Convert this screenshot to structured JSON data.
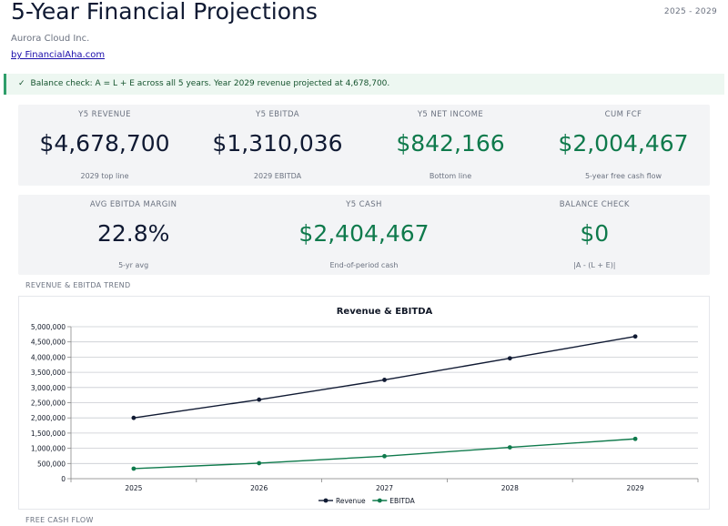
{
  "header": {
    "title": "5-Year Financial Projections",
    "period": "2025 - 2029",
    "company": "Aurora Cloud Inc.",
    "byline": "by FinancialAha.com"
  },
  "banner": {
    "icon": "check-icon",
    "check_glyph": "✓",
    "text": "Balance check: A = L + E across all 5 years. Year 2029 revenue projected at 4,678,700."
  },
  "kpis_row1": [
    {
      "label": "Y5 REVENUE",
      "value": "$4,678,700",
      "sub": "2029 top line",
      "color": "#101a33"
    },
    {
      "label": "Y5 EBITDA",
      "value": "$1,310,036",
      "sub": "2029 EBITDA",
      "color": "#101a33"
    },
    {
      "label": "Y5 NET INCOME",
      "value": "$842,166",
      "sub": "Bottom line",
      "color": "#0f7a4c"
    },
    {
      "label": "CUM FCF",
      "value": "$2,004,467",
      "sub": "5-year free cash flow",
      "color": "#0f7a4c"
    }
  ],
  "kpis_row2": [
    {
      "label": "AVG EBITDA MARGIN",
      "value": "22.8%",
      "sub": "5-yr avg",
      "color": "#101a33"
    },
    {
      "label": "Y5 CASH",
      "value": "$2,404,467",
      "sub": "End-of-period cash",
      "color": "#0f7a4c"
    },
    {
      "label": "BALANCE CHECK",
      "value": "$0",
      "sub": "|A - (L + E)|",
      "color": "#0f7a4c"
    }
  ],
  "sections": {
    "trend_label": "REVENUE & EBITDA TREND",
    "fcf_label": "FREE CASH FLOW"
  },
  "chart_data": {
    "type": "line",
    "title": "Revenue & EBITDA",
    "xlabel": "",
    "ylabel": "",
    "categories": [
      "2025",
      "2026",
      "2027",
      "2028",
      "2029"
    ],
    "ylim": [
      0,
      5000000
    ],
    "yticks": [
      0,
      500000,
      1000000,
      1500000,
      2000000,
      2500000,
      3000000,
      3500000,
      4000000,
      4500000,
      5000000
    ],
    "ytick_labels": [
      "0",
      "500,000",
      "1,000,000",
      "1,500,000",
      "2,000,000",
      "2,500,000",
      "3,000,000",
      "3,500,000",
      "4,000,000",
      "4,500,000",
      "5,000,000"
    ],
    "grid": true,
    "legend": "bottom-center",
    "series": [
      {
        "name": "Revenue",
        "color": "#101a33",
        "values": [
          2000000,
          2600000,
          3250000,
          3960000,
          4678700
        ]
      },
      {
        "name": "EBITDA",
        "color": "#0f7a4c",
        "values": [
          330000,
          510000,
          740000,
          1030000,
          1310036
        ]
      }
    ]
  }
}
